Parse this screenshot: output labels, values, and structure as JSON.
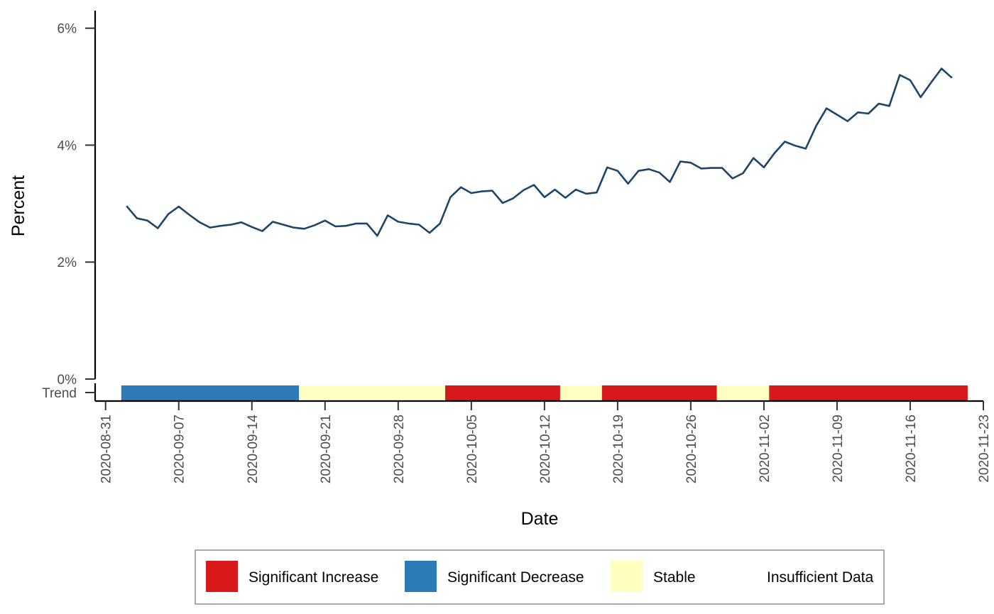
{
  "chart_data": {
    "type": "line",
    "xlabel": "Date",
    "ylabel": "Percent",
    "x_range": [
      "2020-08-30",
      "2020-11-23"
    ],
    "ylim": [
      0,
      6.3
    ],
    "y_ticks": [
      {
        "value": 0,
        "label": "0%"
      },
      {
        "value": 2,
        "label": "2%"
      },
      {
        "value": 4,
        "label": "4%"
      },
      {
        "value": 6,
        "label": "6%"
      }
    ],
    "x_ticks": [
      "2020-08-31",
      "2020-09-07",
      "2020-09-14",
      "2020-09-21",
      "2020-09-28",
      "2020-10-05",
      "2020-10-12",
      "2020-10-19",
      "2020-10-26",
      "2020-11-02",
      "2020-11-09",
      "2020-11-16",
      "2020-11-23"
    ],
    "line_color": "#1d4568",
    "series": [
      {
        "start_date": "2020-09-02",
        "values": [
          2.96,
          2.75,
          2.71,
          2.58,
          2.82,
          2.95,
          2.81,
          2.68,
          2.59,
          2.62,
          2.64,
          2.68,
          2.6,
          2.53,
          2.69,
          2.64,
          2.59,
          2.57,
          2.63,
          2.71,
          2.61,
          2.62,
          2.66,
          2.66,
          2.45,
          2.8,
          2.69,
          2.66,
          2.64,
          2.5,
          2.66,
          3.11,
          3.28,
          3.18,
          3.21,
          3.22,
          3.01,
          3.09,
          3.23,
          3.32,
          3.11,
          3.24,
          3.1,
          3.24,
          3.17,
          3.19,
          3.62,
          3.56,
          3.34,
          3.56,
          3.59,
          3.53,
          3.37,
          3.72,
          3.7,
          3.6,
          3.61,
          3.61,
          3.43,
          3.52,
          3.78,
          3.62,
          3.86,
          4.06,
          3.99,
          3.94,
          4.33,
          4.63,
          4.52,
          4.41,
          4.56,
          4.54,
          4.71,
          4.67,
          5.2,
          5.11,
          4.82,
          5.07,
          5.31,
          5.15
        ]
      }
    ],
    "trend_row_label": "Trend",
    "trend_segments": [
      {
        "start": "2020-09-01.5",
        "end": "2020-09-18.5",
        "category": "Significant Decrease"
      },
      {
        "start": "2020-09-18.5",
        "end": "2020-10-02.5",
        "category": "Stable"
      },
      {
        "start": "2020-10-02.5",
        "end": "2020-10-13.5",
        "category": "Significant Increase"
      },
      {
        "start": "2020-10-13.5",
        "end": "2020-10-17.5",
        "category": "Stable"
      },
      {
        "start": "2020-10-17.5",
        "end": "2020-10-28.5",
        "category": "Significant Increase"
      },
      {
        "start": "2020-10-28.5",
        "end": "2020-11-02.5",
        "category": "Stable"
      },
      {
        "start": "2020-11-02.5",
        "end": "2020-11-21.5",
        "category": "Significant Increase"
      }
    ],
    "legend": {
      "placement": "bottom",
      "items": [
        {
          "label": "Significant Increase",
          "color": "#d7191c"
        },
        {
          "label": "Significant Decrease",
          "color": "#2c7bb6"
        },
        {
          "label": "Stable",
          "color": "#ffffbf"
        },
        {
          "label": "Insufficient Data",
          "color": "#ffffff"
        }
      ]
    }
  }
}
